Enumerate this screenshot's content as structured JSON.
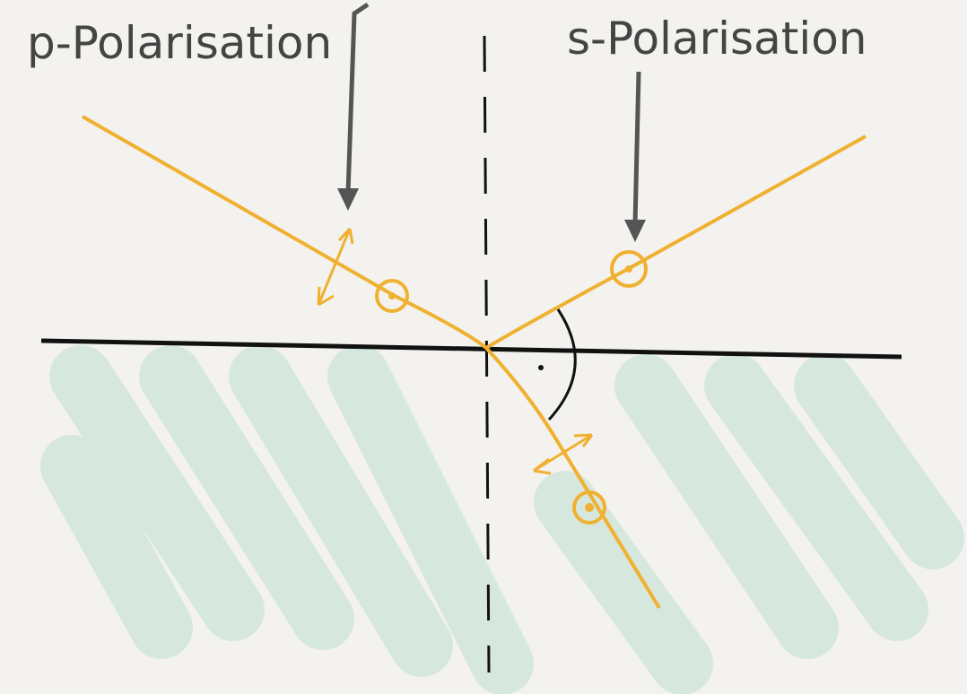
{
  "labels": {
    "left": "p-Polarisation",
    "right": "s-Polarisation"
  }
}
